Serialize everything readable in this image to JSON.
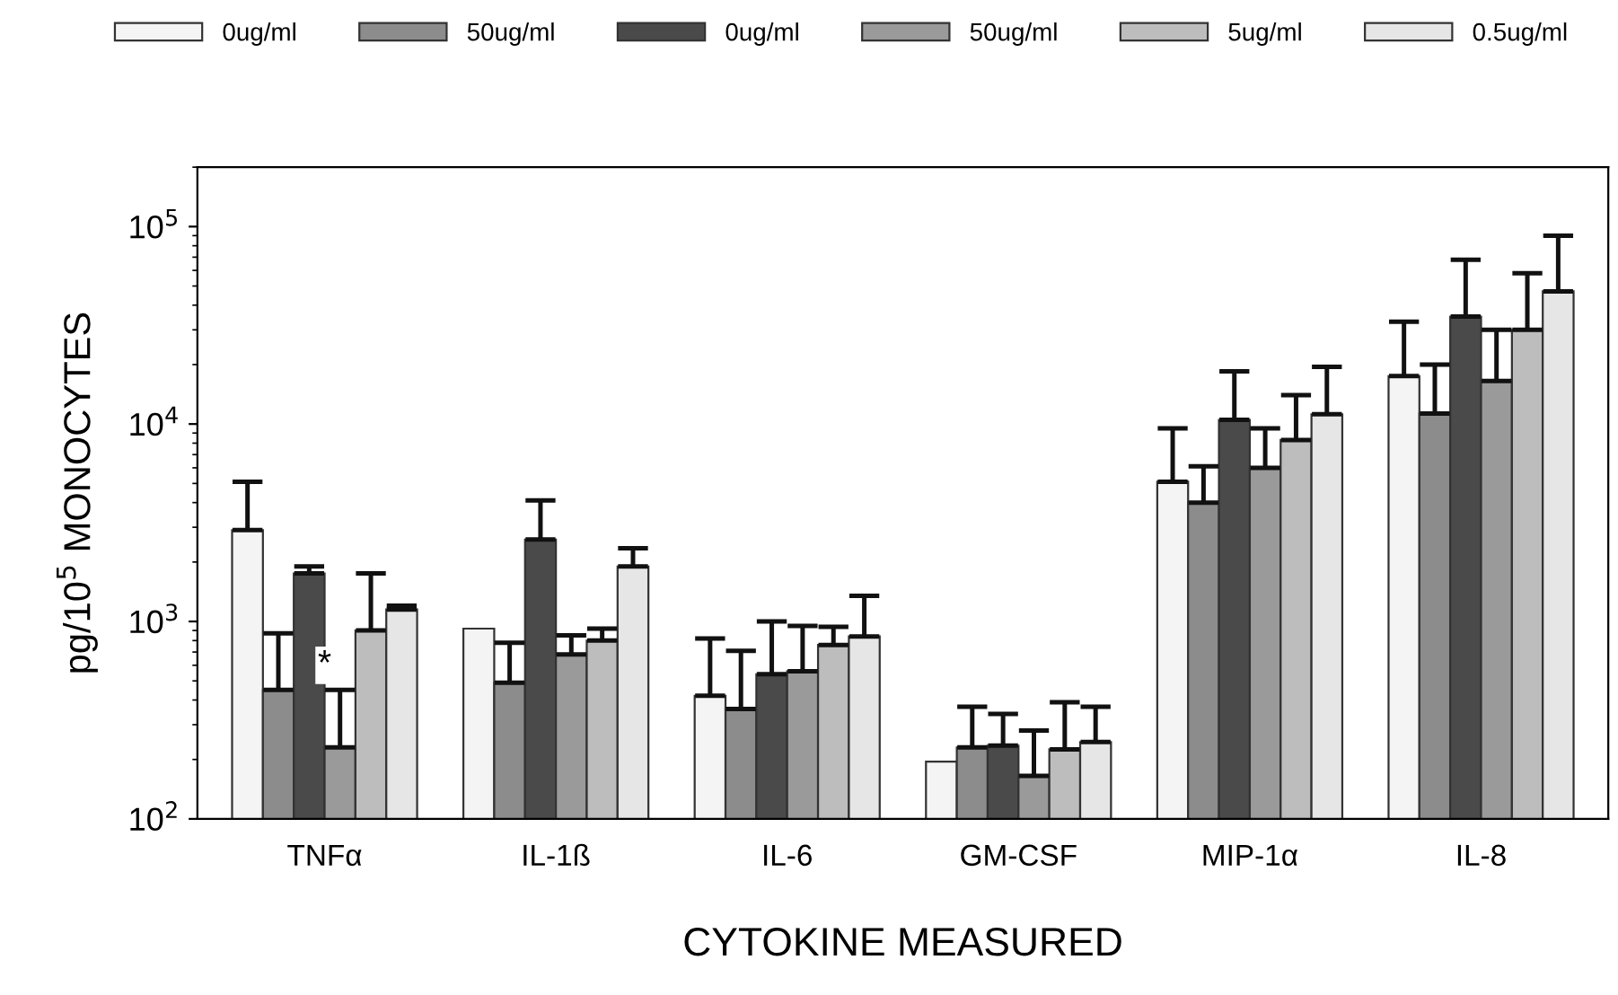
{
  "chart_data": {
    "type": "bar",
    "xlabel": "CYTOKINE MEASURED",
    "ylabel": "pg/10$^{5}$ MONOCYTES",
    "categories": [
      "TNFα",
      "IL-1ß",
      "IL-6",
      "GM-CSF",
      "MIP-1α",
      "IL-8"
    ],
    "series": [
      {
        "name": "0ug/ml",
        "color": "#f4f4f4",
        "values": [
          2900,
          920,
          420,
          195,
          5100,
          17500
        ],
        "errors": [
          [
            2900,
            5100
          ],
          null,
          [
            420,
            820
          ],
          null,
          [
            5100,
            9500
          ],
          [
            17500,
            33000
          ]
        ]
      },
      {
        "name": "50ug/ml",
        "color": "#8c8c8c",
        "values": [
          450,
          490,
          360,
          230,
          4000,
          11300
        ],
        "errors": [
          [
            450,
            870
          ],
          [
            490,
            780
          ],
          [
            360,
            710
          ],
          [
            230,
            370
          ],
          [
            4000,
            6100
          ],
          [
            11300,
            20000
          ]
        ]
      },
      {
        "name": "0ug/ml",
        "color": "#4a4a4a",
        "values": [
          1750,
          2600,
          540,
          235,
          10500,
          35000
        ],
        "errors": [
          [
            1750,
            1900
          ],
          [
            2600,
            4100
          ],
          [
            540,
            1000
          ],
          [
            235,
            340
          ],
          [
            10500,
            18500
          ],
          [
            35000,
            68000
          ]
        ]
      },
      {
        "name": "50ug/ml",
        "color": "#9a9a9a",
        "values": [
          230,
          680,
          560,
          165,
          6000,
          16500
        ],
        "errors": [
          [
            230,
            450
          ],
          [
            680,
            850
          ],
          [
            560,
            950
          ],
          [
            165,
            280
          ],
          [
            6000,
            9500
          ],
          [
            16500,
            30000
          ]
        ]
      },
      {
        "name": "5ug/ml",
        "color": "#bdbdbd",
        "values": [
          900,
          800,
          760,
          225,
          8300,
          30000
        ],
        "errors": [
          [
            900,
            1750
          ],
          [
            800,
            920
          ],
          [
            760,
            940
          ],
          [
            225,
            390
          ],
          [
            8300,
            14000
          ],
          [
            30000,
            58000
          ]
        ]
      },
      {
        "name": "0.5ug/ml",
        "color": "#e6e6e6",
        "values": [
          1150,
          1900,
          840,
          245,
          11200,
          47000
        ],
        "errors": [
          [
            1150,
            1200
          ],
          [
            1900,
            2350
          ],
          [
            840,
            1350
          ],
          [
            245,
            370
          ],
          [
            11200,
            19500
          ],
          [
            47000,
            90000
          ]
        ]
      }
    ],
    "log": true,
    "ylim": [
      100,
      200000
    ],
    "yticks": [
      {
        "value": 100,
        "label": "10$^{2}$"
      },
      {
        "value": 1000,
        "label": "10$^{3}$"
      },
      {
        "value": 10000,
        "label": "10$^{4}$"
      },
      {
        "value": 100000,
        "label": "10$^{5}$"
      }
    ],
    "grid": false,
    "legend": "top",
    "annotations": [
      {
        "text": "*",
        "x": "TNFα",
        "y": 600
      }
    ]
  }
}
